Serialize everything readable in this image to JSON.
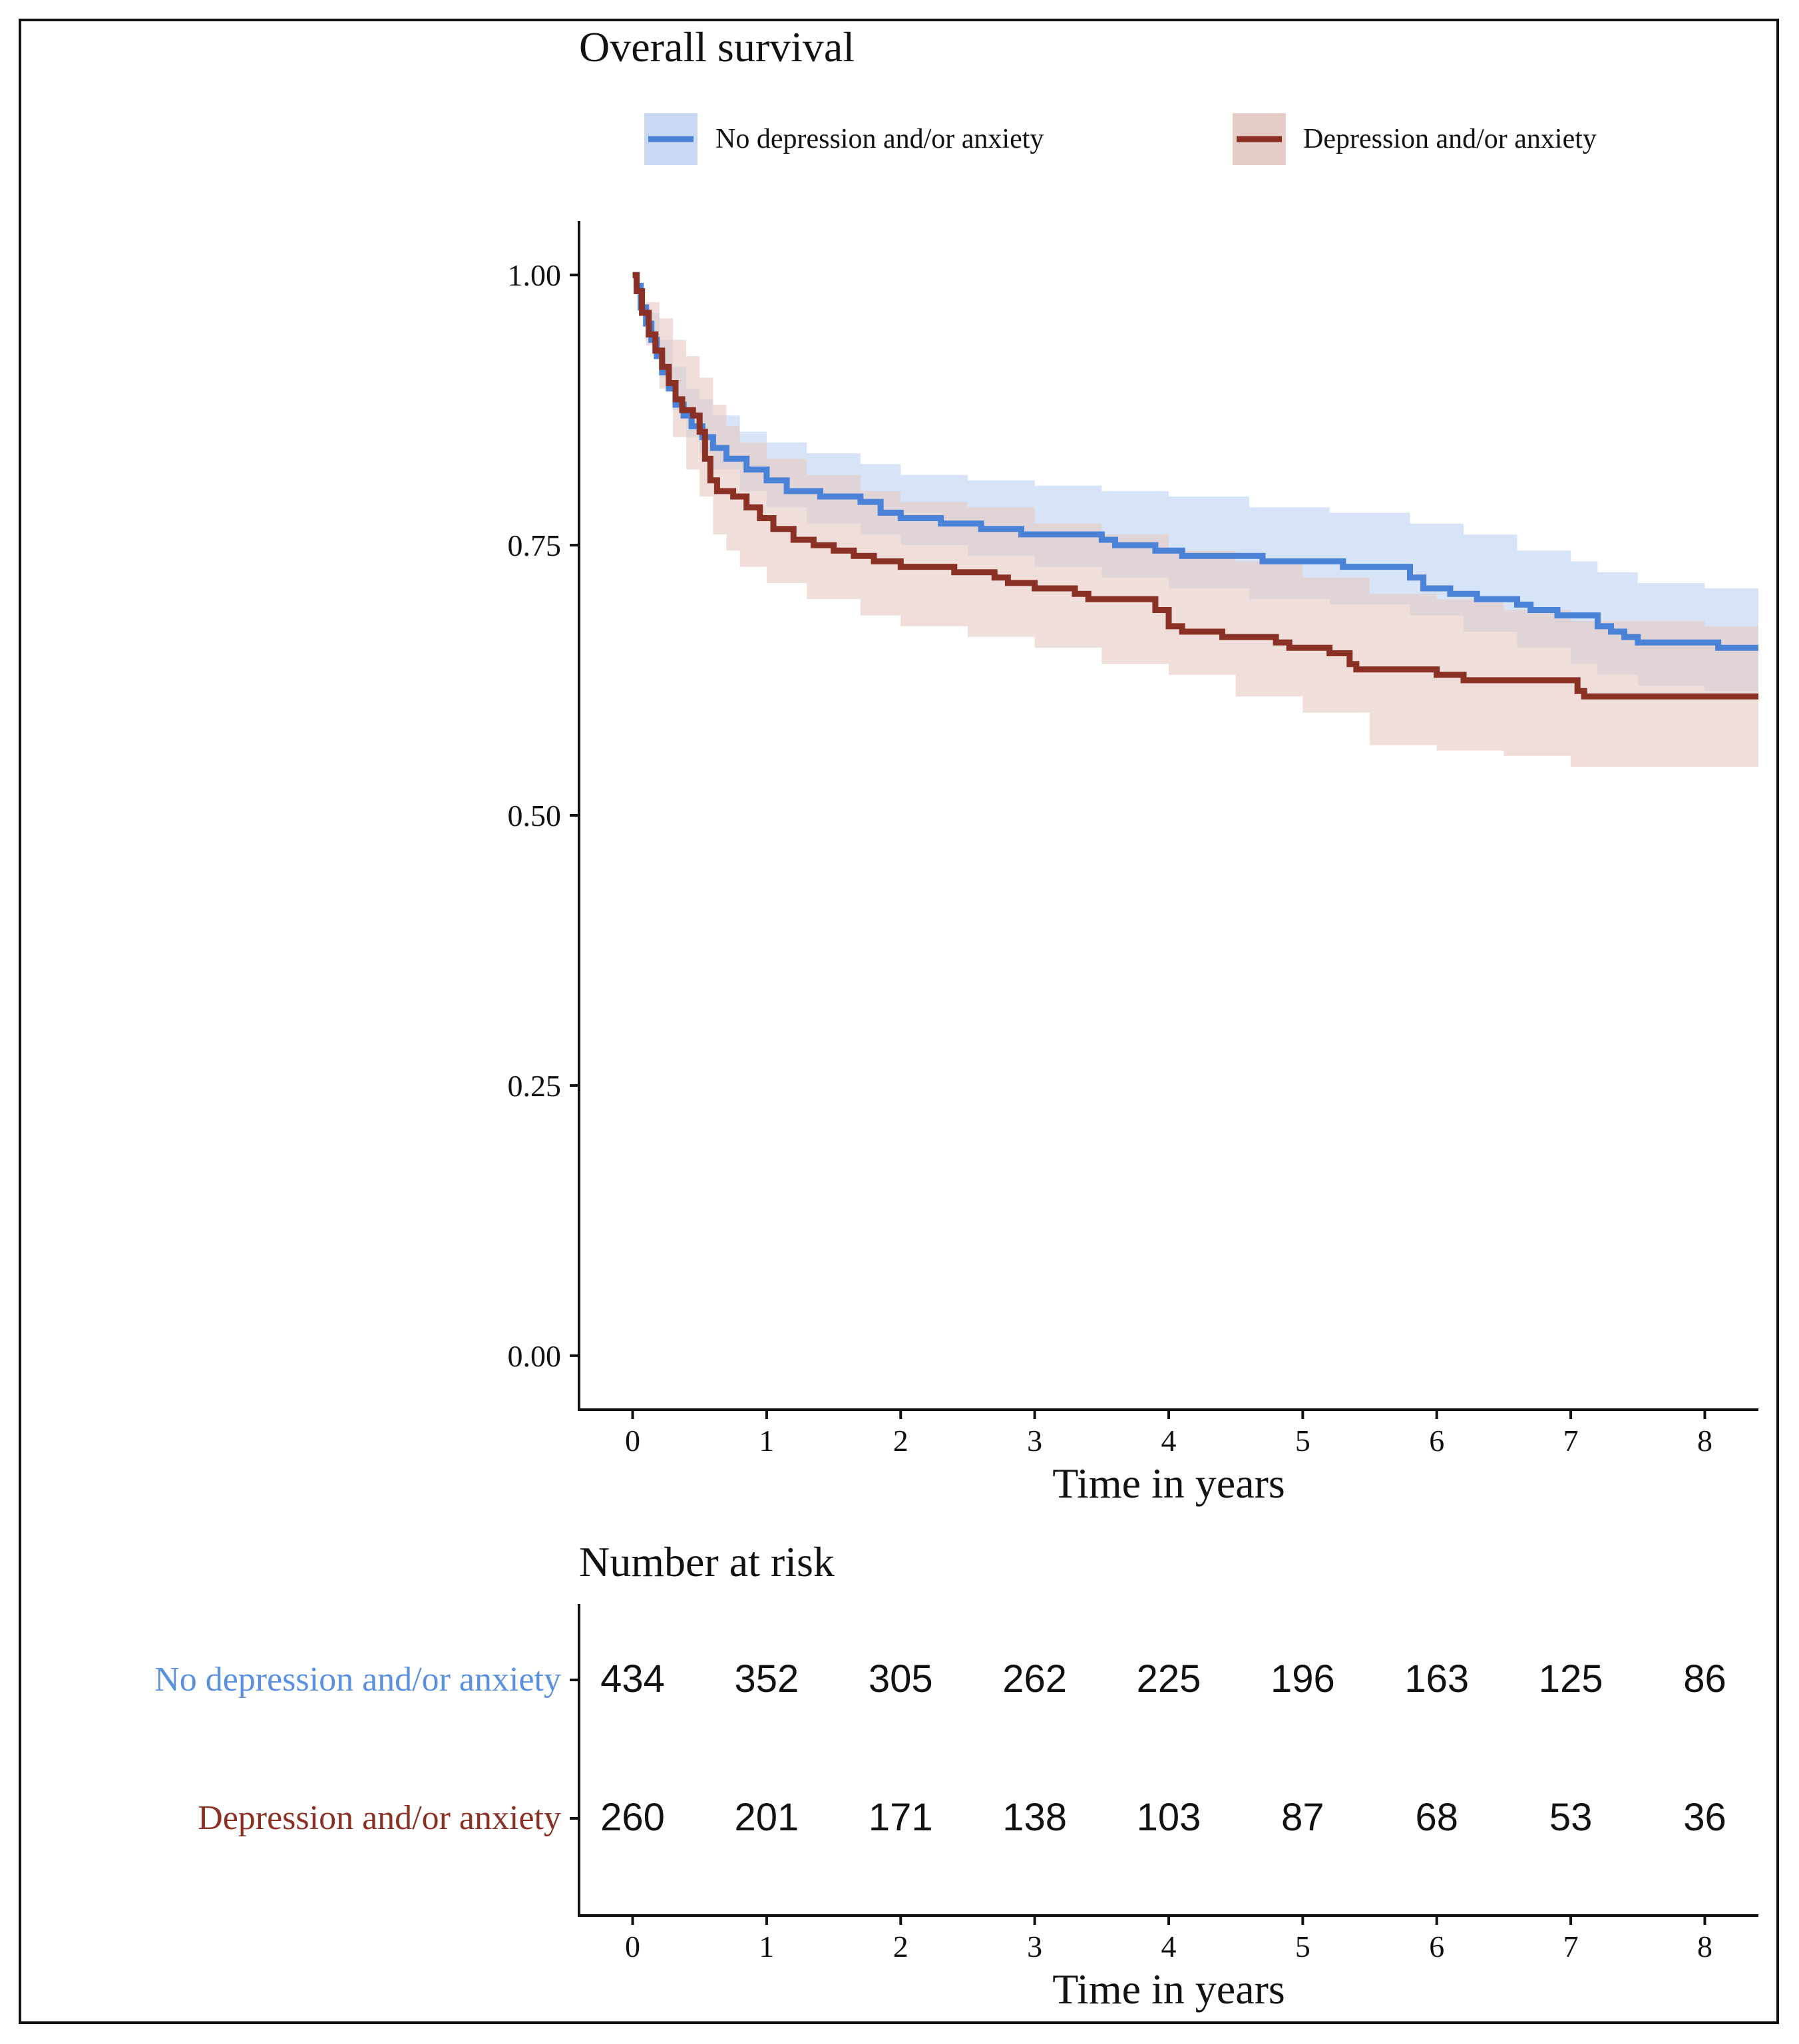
{
  "chart_data": [
    {
      "type": "line",
      "subtype": "kaplan-meier",
      "title": "Overall survival",
      "xlabel": "Time in years",
      "ylabel": "",
      "xlim": [
        -0.4,
        8.4
      ],
      "ylim": [
        -0.05,
        1.05
      ],
      "xticks": [
        "0",
        "1",
        "2",
        "3",
        "4",
        "5",
        "6",
        "7",
        "8"
      ],
      "yticks": [
        "0.00",
        "0.25",
        "0.50",
        "0.75",
        "1.00"
      ],
      "legend_position": "top",
      "series": [
        {
          "name": "No depression and/or anxiety",
          "color": "#4a82d8",
          "ci_color": "#c9d9f4",
          "steps": [
            [
              0,
              1.0
            ],
            [
              0.03,
              0.99
            ],
            [
              0.06,
              0.97
            ],
            [
              0.1,
              0.955
            ],
            [
              0.14,
              0.94
            ],
            [
              0.18,
              0.925
            ],
            [
              0.22,
              0.91
            ],
            [
              0.27,
              0.895
            ],
            [
              0.32,
              0.88
            ],
            [
              0.38,
              0.87
            ],
            [
              0.44,
              0.86
            ],
            [
              0.52,
              0.85
            ],
            [
              0.6,
              0.84
            ],
            [
              0.7,
              0.83
            ],
            [
              0.85,
              0.82
            ],
            [
              1.0,
              0.81
            ],
            [
              1.15,
              0.8
            ],
            [
              1.4,
              0.795
            ],
            [
              1.7,
              0.79
            ],
            [
              1.85,
              0.78
            ],
            [
              2.0,
              0.775
            ],
            [
              2.3,
              0.77
            ],
            [
              2.6,
              0.765
            ],
            [
              2.9,
              0.76
            ],
            [
              3.5,
              0.755
            ],
            [
              3.6,
              0.75
            ],
            [
              3.9,
              0.745
            ],
            [
              4.1,
              0.74
            ],
            [
              4.7,
              0.735
            ],
            [
              5.3,
              0.73
            ],
            [
              5.8,
              0.72
            ],
            [
              5.9,
              0.71
            ],
            [
              6.1,
              0.705
            ],
            [
              6.3,
              0.7
            ],
            [
              6.6,
              0.695
            ],
            [
              6.7,
              0.69
            ],
            [
              6.9,
              0.685
            ],
            [
              7.2,
              0.675
            ],
            [
              7.3,
              0.67
            ],
            [
              7.4,
              0.665
            ],
            [
              7.5,
              0.66
            ],
            [
              8.1,
              0.655
            ],
            [
              8.4,
              0.655
            ]
          ],
          "ci_upper": [
            [
              0,
              1.0
            ],
            [
              0.1,
              0.965
            ],
            [
              0.2,
              0.94
            ],
            [
              0.3,
              0.915
            ],
            [
              0.4,
              0.895
            ],
            [
              0.5,
              0.885
            ],
            [
              0.6,
              0.87
            ],
            [
              0.8,
              0.855
            ],
            [
              1.0,
              0.845
            ],
            [
              1.3,
              0.835
            ],
            [
              1.7,
              0.825
            ],
            [
              2.0,
              0.815
            ],
            [
              2.5,
              0.81
            ],
            [
              3.0,
              0.805
            ],
            [
              3.5,
              0.8
            ],
            [
              4.0,
              0.795
            ],
            [
              4.6,
              0.785
            ],
            [
              5.2,
              0.78
            ],
            [
              5.8,
              0.77
            ],
            [
              6.2,
              0.76
            ],
            [
              6.6,
              0.745
            ],
            [
              7.0,
              0.735
            ],
            [
              7.2,
              0.725
            ],
            [
              7.5,
              0.715
            ],
            [
              8.0,
              0.71
            ],
            [
              8.4,
              0.71
            ]
          ],
          "ci_lower": [
            [
              0,
              1.0
            ],
            [
              0.1,
              0.94
            ],
            [
              0.2,
              0.905
            ],
            [
              0.3,
              0.875
            ],
            [
              0.4,
              0.85
            ],
            [
              0.5,
              0.835
            ],
            [
              0.6,
              0.82
            ],
            [
              0.8,
              0.8
            ],
            [
              1.0,
              0.785
            ],
            [
              1.3,
              0.77
            ],
            [
              1.7,
              0.76
            ],
            [
              2.0,
              0.75
            ],
            [
              2.5,
              0.74
            ],
            [
              3.0,
              0.73
            ],
            [
              3.5,
              0.72
            ],
            [
              4.0,
              0.71
            ],
            [
              4.6,
              0.7
            ],
            [
              5.2,
              0.695
            ],
            [
              5.8,
              0.685
            ],
            [
              6.2,
              0.67
            ],
            [
              6.6,
              0.655
            ],
            [
              7.0,
              0.64
            ],
            [
              7.2,
              0.63
            ],
            [
              7.5,
              0.62
            ],
            [
              8.0,
              0.615
            ],
            [
              8.4,
              0.61
            ]
          ]
        },
        {
          "name": "Depression and/or anxiety",
          "color": "#8b3024",
          "ci_color": "#e6ccc6",
          "steps": [
            [
              0,
              1.0
            ],
            [
              0.03,
              0.985
            ],
            [
              0.07,
              0.965
            ],
            [
              0.12,
              0.945
            ],
            [
              0.17,
              0.93
            ],
            [
              0.22,
              0.915
            ],
            [
              0.27,
              0.9
            ],
            [
              0.32,
              0.885
            ],
            [
              0.37,
              0.875
            ],
            [
              0.45,
              0.87
            ],
            [
              0.5,
              0.855
            ],
            [
              0.54,
              0.83
            ],
            [
              0.58,
              0.81
            ],
            [
              0.63,
              0.8
            ],
            [
              0.75,
              0.795
            ],
            [
              0.85,
              0.785
            ],
            [
              0.95,
              0.775
            ],
            [
              1.05,
              0.765
            ],
            [
              1.2,
              0.755
            ],
            [
              1.35,
              0.75
            ],
            [
              1.5,
              0.745
            ],
            [
              1.65,
              0.74
            ],
            [
              1.8,
              0.735
            ],
            [
              2.0,
              0.73
            ],
            [
              2.4,
              0.725
            ],
            [
              2.7,
              0.72
            ],
            [
              2.8,
              0.715
            ],
            [
              3.0,
              0.71
            ],
            [
              3.3,
              0.705
            ],
            [
              3.4,
              0.7
            ],
            [
              3.9,
              0.69
            ],
            [
              4.0,
              0.675
            ],
            [
              4.1,
              0.67
            ],
            [
              4.4,
              0.665
            ],
            [
              4.8,
              0.66
            ],
            [
              4.9,
              0.655
            ],
            [
              5.2,
              0.65
            ],
            [
              5.35,
              0.64
            ],
            [
              5.4,
              0.635
            ],
            [
              6.0,
              0.63
            ],
            [
              6.2,
              0.625
            ],
            [
              7.05,
              0.615
            ],
            [
              7.1,
              0.61
            ],
            [
              8.4,
              0.61
            ]
          ],
          "ci_upper": [
            [
              0,
              1.0
            ],
            [
              0.1,
              0.975
            ],
            [
              0.2,
              0.96
            ],
            [
              0.3,
              0.94
            ],
            [
              0.4,
              0.925
            ],
            [
              0.5,
              0.905
            ],
            [
              0.6,
              0.88
            ],
            [
              0.7,
              0.86
            ],
            [
              0.8,
              0.845
            ],
            [
              1.0,
              0.83
            ],
            [
              1.3,
              0.815
            ],
            [
              1.7,
              0.8
            ],
            [
              2.0,
              0.79
            ],
            [
              2.5,
              0.785
            ],
            [
              3.0,
              0.77
            ],
            [
              3.5,
              0.76
            ],
            [
              4.0,
              0.745
            ],
            [
              4.5,
              0.735
            ],
            [
              5.0,
              0.72
            ],
            [
              5.5,
              0.705
            ],
            [
              6.0,
              0.7
            ],
            [
              6.5,
              0.69
            ],
            [
              7.0,
              0.68
            ],
            [
              7.5,
              0.68
            ],
            [
              8.0,
              0.675
            ],
            [
              8.4,
              0.675
            ]
          ],
          "ci_lower": [
            [
              0,
              1.0
            ],
            [
              0.1,
              0.935
            ],
            [
              0.2,
              0.895
            ],
            [
              0.3,
              0.85
            ],
            [
              0.4,
              0.82
            ],
            [
              0.5,
              0.795
            ],
            [
              0.6,
              0.76
            ],
            [
              0.7,
              0.745
            ],
            [
              0.8,
              0.73
            ],
            [
              1.0,
              0.715
            ],
            [
              1.3,
              0.7
            ],
            [
              1.7,
              0.685
            ],
            [
              2.0,
              0.675
            ],
            [
              2.5,
              0.665
            ],
            [
              3.0,
              0.655
            ],
            [
              3.5,
              0.64
            ],
            [
              4.0,
              0.63
            ],
            [
              4.5,
              0.61
            ],
            [
              5.0,
              0.595
            ],
            [
              5.5,
              0.565
            ],
            [
              6.0,
              0.56
            ],
            [
              6.5,
              0.555
            ],
            [
              7.0,
              0.545
            ],
            [
              7.5,
              0.545
            ],
            [
              8.0,
              0.545
            ],
            [
              8.4,
              0.545
            ]
          ]
        }
      ]
    },
    {
      "type": "table",
      "title": "Number at risk",
      "xlabel": "Time in years",
      "xticks": [
        "0",
        "1",
        "2",
        "3",
        "4",
        "5",
        "6",
        "7",
        "8"
      ],
      "rows": [
        {
          "name": "No depression and/or anxiety",
          "color": "#5b8fe0",
          "values": [
            "434",
            "352",
            "305",
            "262",
            "225",
            "196",
            "163",
            "125",
            "86"
          ]
        },
        {
          "name": "Depression and/or anxiety",
          "color": "#8b3024",
          "values": [
            "260",
            "201",
            "171",
            "138",
            "103",
            "87",
            "68",
            "53",
            "36"
          ]
        }
      ]
    }
  ]
}
